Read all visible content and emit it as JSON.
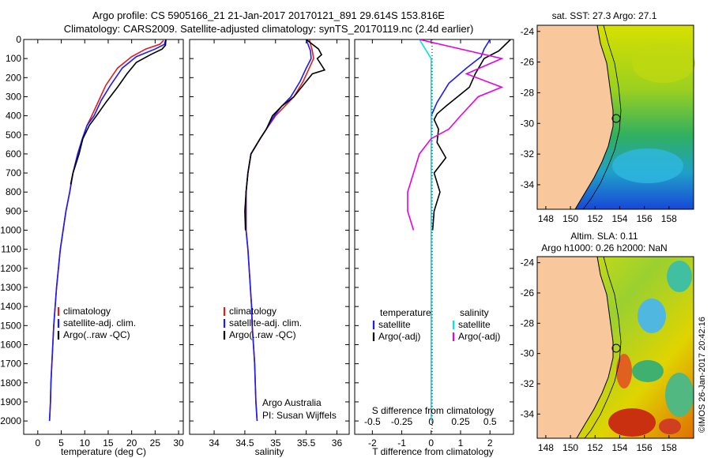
{
  "header": {
    "line1": "Argo profile: CS 5905166_21 21-Jan-2017 20170121_891 29.614S 153.816E",
    "line2": "Climatology: CARS2009. Satellite-adjusted climatology: synTS_20170119.nc (2.4d earlier)"
  },
  "chart_data": [
    {
      "type": "line",
      "xlabel": "temperature (deg C)",
      "ylabel": "",
      "xlim": [
        -3,
        31
      ],
      "ylim": [
        2070,
        0
      ],
      "xticks": [
        0,
        5,
        10,
        15,
        20,
        25,
        30
      ],
      "yticks": [
        0,
        100,
        200,
        300,
        400,
        500,
        600,
        700,
        800,
        900,
        1000,
        1100,
        1200,
        1300,
        1400,
        1500,
        1600,
        1700,
        1800,
        1900,
        2000
      ],
      "legend": [
        "climatology",
        "satellite-adj. clim.",
        "Argo(..raw -QC)"
      ],
      "legend_position": "lower-center",
      "series": [
        {
          "name": "climatology",
          "color": "#e41a1c",
          "points": [
            [
              26.8,
              5
            ],
            [
              26,
              25
            ],
            [
              23,
              50
            ],
            [
              20,
              90
            ],
            [
              17,
              150
            ],
            [
              14.5,
              240
            ],
            [
              13,
              320
            ],
            [
              11.5,
              400
            ],
            [
              10.5,
              450
            ],
            [
              9.5,
              520
            ],
            [
              8.5,
              600
            ],
            [
              7.5,
              700
            ],
            [
              6.8,
              800
            ],
            [
              6,
              900
            ],
            [
              5.4,
              1000
            ],
            [
              4.8,
              1100
            ],
            [
              4.4,
              1200
            ],
            [
              4,
              1300
            ],
            [
              3.7,
              1400
            ],
            [
              3.4,
              1500
            ],
            [
              3.2,
              1600
            ],
            [
              3,
              1700
            ],
            [
              2.8,
              1800
            ],
            [
              2.7,
              1900
            ],
            [
              2.5,
              2000
            ]
          ]
        },
        {
          "name": "satellite-adj. clim.",
          "color": "#1a1aff",
          "points": [
            [
              27.2,
              5
            ],
            [
              27,
              25
            ],
            [
              25,
              50
            ],
            [
              21,
              90
            ],
            [
              18,
              150
            ],
            [
              15.5,
              240
            ],
            [
              13.5,
              320
            ],
            [
              12,
              400
            ],
            [
              10.5,
              450
            ],
            [
              9.5,
              520
            ],
            [
              8.5,
              600
            ],
            [
              7.5,
              700
            ],
            [
              6.8,
              800
            ],
            [
              6,
              900
            ],
            [
              5.4,
              1000
            ],
            [
              4.8,
              1100
            ],
            [
              4.4,
              1200
            ],
            [
              4,
              1300
            ],
            [
              3.7,
              1400
            ],
            [
              3.4,
              1500
            ],
            [
              3.2,
              1600
            ],
            [
              3,
              1700
            ],
            [
              2.8,
              1800
            ],
            [
              2.7,
              1900
            ],
            [
              2.5,
              2000
            ]
          ]
        },
        {
          "name": "Argo(..raw -QC)",
          "color": "#000000",
          "points": [
            [
              27.3,
              0
            ],
            [
              27.2,
              30
            ],
            [
              26.5,
              50
            ],
            [
              24,
              80
            ],
            [
              21,
              120
            ],
            [
              19,
              180
            ],
            [
              17,
              250
            ],
            [
              14.5,
              330
            ],
            [
              12.5,
              400
            ],
            [
              11,
              450
            ],
            [
              9.6,
              520
            ],
            [
              8.8,
              600
            ],
            [
              7.5,
              700
            ],
            [
              7,
              760
            ]
          ]
        }
      ]
    },
    {
      "type": "line",
      "xlabel": "salinity",
      "ylabel": "",
      "xlim": [
        33.6,
        36.2
      ],
      "ylim": [
        2070,
        0
      ],
      "xticks": [
        34,
        34.5,
        35,
        35.5,
        36
      ],
      "legend": [
        "climatology",
        "satellite-adj. clim.",
        "Argo(..raw -QC)"
      ],
      "legend_position": "lower-center",
      "annotation": [
        "Argo Australia",
        "PI: Susan Wijffels"
      ],
      "series": [
        {
          "name": "climatology",
          "color": "#e41a1c",
          "points": [
            [
              35.55,
              0
            ],
            [
              35.6,
              60
            ],
            [
              35.62,
              100
            ],
            [
              35.55,
              150
            ],
            [
              35.45,
              220
            ],
            [
              35.3,
              300
            ],
            [
              35.15,
              350
            ],
            [
              35,
              400
            ],
            [
              34.85,
              470
            ],
            [
              34.75,
              520
            ],
            [
              34.6,
              600
            ],
            [
              34.55,
              700
            ],
            [
              34.52,
              800
            ],
            [
              34.52,
              900
            ],
            [
              34.52,
              1000
            ],
            [
              34.55,
              1100
            ],
            [
              34.57,
              1200
            ],
            [
              34.59,
              1300
            ],
            [
              34.61,
              1400
            ],
            [
              34.62,
              1500
            ],
            [
              34.64,
              1600
            ],
            [
              34.66,
              1700
            ],
            [
              34.67,
              1800
            ],
            [
              34.68,
              1900
            ],
            [
              34.7,
              2000
            ]
          ]
        },
        {
          "name": "satellite-adj. clim.",
          "color": "#1a1aff",
          "points": [
            [
              35.5,
              0
            ],
            [
              35.57,
              60
            ],
            [
              35.58,
              100
            ],
            [
              35.5,
              150
            ],
            [
              35.4,
              220
            ],
            [
              35.25,
              300
            ],
            [
              35.1,
              350
            ],
            [
              34.98,
              400
            ],
            [
              34.85,
              470
            ],
            [
              34.75,
              520
            ],
            [
              34.6,
              600
            ],
            [
              34.55,
              700
            ],
            [
              34.52,
              800
            ],
            [
              34.52,
              900
            ],
            [
              34.52,
              1000
            ],
            [
              34.55,
              1100
            ],
            [
              34.57,
              1200
            ],
            [
              34.59,
              1300
            ],
            [
              34.61,
              1400
            ],
            [
              34.62,
              1500
            ],
            [
              34.64,
              1600
            ],
            [
              34.66,
              1700
            ],
            [
              34.67,
              1800
            ],
            [
              34.68,
              1900
            ],
            [
              34.7,
              2000
            ]
          ]
        },
        {
          "name": "Argo(..raw -QC)",
          "color": "#000000",
          "points": [
            [
              35.5,
              0
            ],
            [
              35.7,
              50
            ],
            [
              35.75,
              80
            ],
            [
              35.68,
              100
            ],
            [
              35.8,
              160
            ],
            [
              35.6,
              180
            ],
            [
              35.5,
              220
            ],
            [
              35.3,
              300
            ],
            [
              35.1,
              350
            ],
            [
              34.95,
              400
            ],
            [
              34.85,
              470
            ],
            [
              34.75,
              520
            ],
            [
              34.6,
              600
            ],
            [
              34.55,
              700
            ],
            [
              34.52,
              800
            ],
            [
              34.5,
              900
            ],
            [
              34.51,
              1000
            ]
          ]
        }
      ]
    },
    {
      "type": "line",
      "xlabel": "T difference from climatology",
      "x2label": "S difference from climatology",
      "ylabel": "",
      "xlim": [
        -2.6,
        2.8
      ],
      "ylim": [
        2070,
        0
      ],
      "xticks": [
        -2,
        -1,
        0,
        1,
        2
      ],
      "x2ticks": [
        "-0.5",
        "-0.25",
        "0",
        "0.25",
        "0.5"
      ],
      "legend_titles": [
        "temperature",
        "salinity"
      ],
      "legend": [
        "satellite",
        "Argo(-adj)",
        "satellite",
        "Argo(-adj)"
      ],
      "legend_position": "lower-center",
      "series": [
        {
          "name": "satellite",
          "group": "temperature",
          "color": "#1a1aff",
          "points": [
            [
              2.0,
              0
            ],
            [
              1.8,
              50
            ],
            [
              1.7,
              90
            ],
            [
              1.2,
              150
            ],
            [
              0.6,
              230
            ],
            [
              0.2,
              330
            ],
            [
              0,
              400
            ],
            [
              0,
              2000
            ]
          ]
        },
        {
          "name": "Argo(-adj)",
          "group": "temperature",
          "color": "#000000",
          "points": [
            [
              2.7,
              0
            ],
            [
              2.5,
              30
            ],
            [
              2.3,
              60
            ],
            [
              1.8,
              100
            ],
            [
              1.5,
              180
            ],
            [
              1.3,
              250
            ],
            [
              0.9,
              300
            ],
            [
              0.5,
              350
            ],
            [
              0.2,
              390
            ],
            [
              0.1,
              420
            ],
            [
              0.25,
              470
            ],
            [
              0.2,
              540
            ],
            [
              0.5,
              620
            ],
            [
              0.1,
              700
            ],
            [
              0.3,
              800
            ],
            [
              0.1,
              900
            ],
            [
              0.05,
              1000
            ]
          ]
        },
        {
          "name": "satellite",
          "group": "salinity",
          "color": "#00e5e5",
          "points": [
            [
              -0.1,
              0
            ],
            [
              -0.05,
              50
            ],
            [
              0,
              100
            ],
            [
              0,
              2000
            ]
          ]
        },
        {
          "name": "Argo(-adj)",
          "group": "salinity",
          "color": "#e600e6",
          "points": [
            [
              -0.1,
              0
            ],
            [
              0.6,
              100
            ],
            [
              0.3,
              180
            ],
            [
              0.6,
              250
            ],
            [
              0.4,
              300
            ],
            [
              0.25,
              400
            ],
            [
              0.15,
              470
            ],
            [
              0,
              520
            ],
            [
              -0.1,
              600
            ],
            [
              -0.15,
              700
            ],
            [
              -0.2,
              800
            ],
            [
              -0.2,
              900
            ],
            [
              -0.15,
              1000
            ]
          ]
        }
      ]
    }
  ],
  "maps": {
    "sst": {
      "title": "sat. SST: 27.3 Argo: 27.1",
      "yticks": [
        "-24",
        "-26",
        "-28",
        "-30",
        "-32",
        "-34"
      ],
      "xticks": [
        "148",
        "150",
        "152",
        "154",
        "156",
        "158"
      ]
    },
    "sla": {
      "title1": "Altim. SLA: 0.11",
      "title2": "Argo h1000: 0.26 h2000: NaN",
      "yticks": [
        "-24",
        "-26",
        "-28",
        "-30",
        "-32",
        "-34"
      ],
      "xticks": [
        "148",
        "150",
        "152",
        "154",
        "156",
        "158"
      ]
    }
  },
  "footer": {
    "stamp": "©IMOS 26-Jan-2017 20:42:16"
  }
}
